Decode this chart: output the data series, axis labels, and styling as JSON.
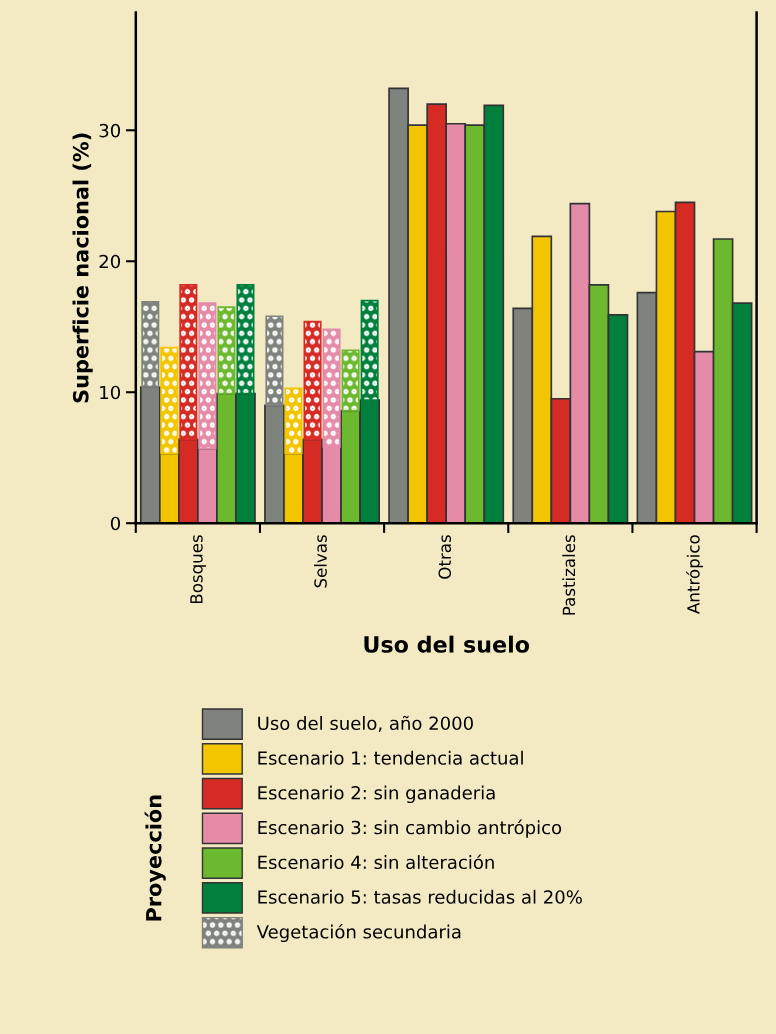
{
  "chart_data": {
    "type": "bar",
    "xlabel": "Uso del suelo",
    "ylabel": "Superficie nacional (%)",
    "legend_title": "Proyección",
    "categories": [
      "Bosques",
      "Selvas",
      "Otras",
      "Pastizales",
      "Antrópico"
    ],
    "series": [
      {
        "name": "Uso del suelo, año 2000",
        "color": "#7f837d",
        "values": [
          10.4,
          9.0,
          33.2,
          16.4,
          17.6
        ]
      },
      {
        "name": "Escenario 1: tendencia actual",
        "color": "#f2c500",
        "values": [
          5.3,
          5.3,
          30.4,
          21.9,
          23.8
        ]
      },
      {
        "name": "Escenario 2: sin ganaderia",
        "color": "#d52b24",
        "values": [
          6.4,
          6.4,
          32.0,
          9.5,
          24.5
        ]
      },
      {
        "name": "Escenario 3: sin cambio antrópico",
        "color": "#e48ba8",
        "values": [
          5.7,
          5.8,
          30.5,
          24.4,
          13.1
        ]
      },
      {
        "name": "Escenario 4: sin alteración",
        "color": "#6cb92f",
        "values": [
          9.9,
          8.6,
          30.4,
          18.2,
          21.7
        ]
      },
      {
        "name": "Escenario 5: tasas reducidas al 20%",
        "color": "#007f3d",
        "values": [
          9.9,
          9.4,
          31.9,
          15.9,
          16.8
        ]
      },
      {
        "name": "Vegetación secundaria",
        "color": "#7f837d",
        "values": [
          6.5,
          6.8,
          null,
          null,
          null
        ],
        "base": [
          10.4,
          9.0,
          null,
          null,
          null
        ]
      },
      {
        "color": "#f2c500",
        "values": [
          8.1,
          5.0,
          null,
          null,
          null
        ],
        "base": [
          5.3,
          5.3,
          null,
          null,
          null
        ]
      },
      {
        "color": "#d52b24",
        "values": [
          11.8,
          9.0,
          null,
          null,
          null
        ],
        "base": [
          6.4,
          6.4,
          null,
          null,
          null
        ]
      },
      {
        "color": "#e48ba8",
        "values": [
          11.1,
          9.0,
          null,
          null,
          null
        ],
        "base": [
          5.7,
          5.8,
          null,
          null,
          null
        ]
      },
      {
        "color": "#6cb92f",
        "values": [
          6.6,
          4.6,
          null,
          null,
          null
        ],
        "base": [
          9.9,
          8.6,
          null,
          null,
          null
        ]
      },
      {
        "color": "#007f3d",
        "values": [
          8.3,
          7.6,
          null,
          null,
          null
        ],
        "base": [
          9.9,
          9.4,
          null,
          null,
          null
        ]
      }
    ],
    "ylim": [
      0,
      39
    ],
    "yticks": [
      0,
      10,
      20,
      30
    ],
    "grid": false,
    "legend": "bottom"
  }
}
